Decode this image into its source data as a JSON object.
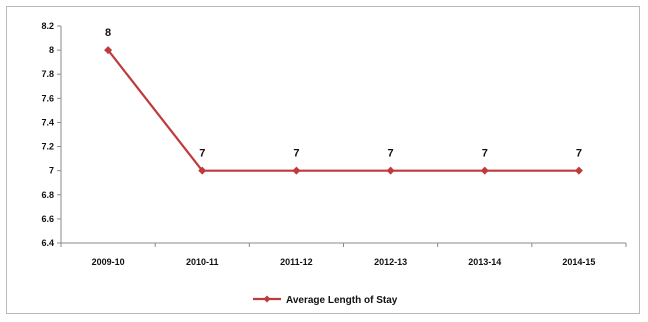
{
  "chart_data": {
    "type": "line",
    "categories": [
      "2009-10",
      "2010-11",
      "2011-12",
      "2012-13",
      "2013-14",
      "2014-15"
    ],
    "series": [
      {
        "name": "Average Length of Stay",
        "values": [
          8,
          7,
          7,
          7,
          7,
          7
        ],
        "color": "#c0393b"
      }
    ],
    "data_labels": [
      "8",
      "7",
      "7",
      "7",
      "7",
      "7"
    ],
    "yticks": [
      "6.4",
      "6.6",
      "6.8",
      "7",
      "7.2",
      "7.4",
      "7.6",
      "7.8",
      "8",
      "8.2"
    ],
    "ylim": [
      6.4,
      8.2
    ],
    "title": "",
    "xlabel": "",
    "ylabel": "",
    "grid": false,
    "legend_position": "bottom"
  }
}
